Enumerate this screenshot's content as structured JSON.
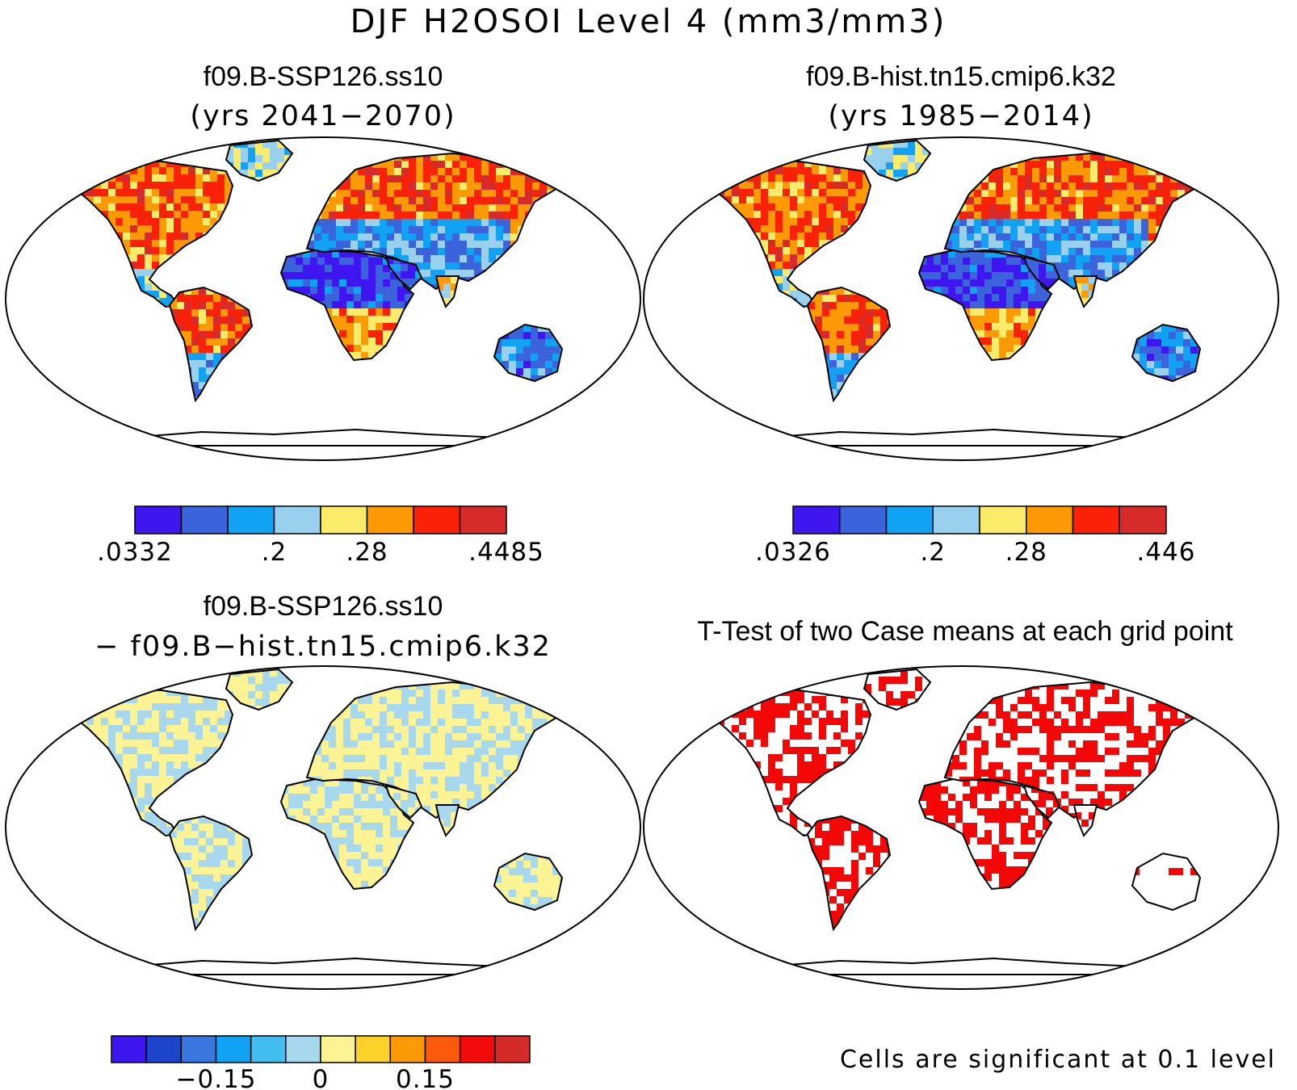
{
  "main_title": "DJF H2OSOI Level 4 (mm3/mm3)",
  "panels": [
    {
      "id": "a",
      "title": "f09.B-SSP126.ss10",
      "subtitle": "(yrs 2041−2070)",
      "field": "absolute"
    },
    {
      "id": "b",
      "title": "f09.B-hist.tn15.cmip6.k32",
      "subtitle": "(yrs 1985−2014)",
      "field": "absolute"
    },
    {
      "id": "c",
      "title": "f09.B-SSP126.ss10",
      "subtitle": "− f09.B−hist.tn15.cmip6.k32",
      "field": "difference"
    },
    {
      "id": "d",
      "title": "T-Test of two Case means at each grid point",
      "subtitle": "",
      "field": "significance"
    }
  ],
  "colorbars": [
    {
      "panel": "a",
      "colors": [
        "#3f15f0",
        "#3a63dc",
        "#12a2f3",
        "#99d0ee",
        "#fbeb6b",
        "#fc9a05",
        "#f92107",
        "#d72a2a"
      ],
      "labels": [
        {
          "text": ".0332",
          "at": 0
        },
        {
          "text": ".2",
          "at": 3
        },
        {
          "text": ".28",
          "at": 5
        },
        {
          "text": ".4485",
          "at": 8
        }
      ]
    },
    {
      "panel": "b",
      "colors": [
        "#3f15f0",
        "#3a63dc",
        "#12a2f3",
        "#99d0ee",
        "#fbeb6b",
        "#fc9a05",
        "#f92107",
        "#d72a2a"
      ],
      "labels": [
        {
          "text": ".0326",
          "at": 0
        },
        {
          "text": ".2",
          "at": 3
        },
        {
          "text": ".28",
          "at": 5
        },
        {
          "text": ".446",
          "at": 8
        }
      ]
    },
    {
      "panel": "c",
      "colors": [
        "#3f15f0",
        "#1f44cc",
        "#3a78e0",
        "#12a2f3",
        "#42bdf0",
        "#a8d8ee",
        "#fcf394",
        "#fcd12a",
        "#fc9a05",
        "#fc5a0b",
        "#f20b0b",
        "#d52a2a"
      ],
      "labels": [
        {
          "text": "−0.15",
          "at": 3
        },
        {
          "text": "0",
          "at": 6
        },
        {
          "text": "0.15",
          "at": 9
        }
      ]
    }
  ],
  "significance_note": "Cells are significant at 0.1 level",
  "colors": {
    "absolute": [
      "#3f15f0",
      "#3a63dc",
      "#12a2f3",
      "#99d0ee",
      "#fbeb6b",
      "#fc9a05",
      "#f92107",
      "#d72a2a"
    ],
    "difference_pos": "#fcf394",
    "difference_neg": "#a8d8ee",
    "significant": "#f40707"
  }
}
